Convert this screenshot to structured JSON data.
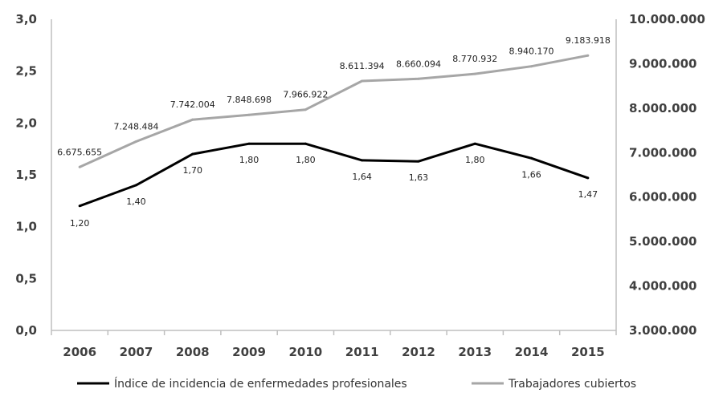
{
  "chart_data": {
    "type": "line",
    "categories": [
      "2006",
      "2007",
      "2008",
      "2009",
      "2010",
      "2011",
      "2012",
      "2013",
      "2014",
      "2015"
    ],
    "series": [
      {
        "name": "Índice de incidencia de enfermedades profesionales",
        "axis": "left",
        "color": "#000000",
        "values": [
          1.2,
          1.4,
          1.7,
          1.8,
          1.8,
          1.64,
          1.63,
          1.8,
          1.66,
          1.47
        ],
        "labels": [
          "1,20",
          "1,40",
          "1,70",
          "1,80",
          "1,80",
          "1,64",
          "1,63",
          "1,80",
          "1,66",
          "1,47"
        ]
      },
      {
        "name": "Trabajadores cubiertos",
        "axis": "right",
        "color": "#a6a6a6",
        "values": [
          6675655,
          7248484,
          7742004,
          7848698,
          7966922,
          8611394,
          8660094,
          8770932,
          8940170,
          9183918
        ],
        "labels": [
          "6.675.655",
          "7.248.484",
          "7.742.004",
          "7.848.698",
          "7.966.922",
          "8.611.394",
          "8.660.094",
          "8.770.932",
          "8.940.170",
          "9.183.918"
        ]
      }
    ],
    "ylim_left": [
      0,
      3
    ],
    "ylim_right": [
      3000000,
      10000000
    ],
    "yticks_left": [
      "0,0",
      "0,5",
      "1,0",
      "1,5",
      "2,0",
      "2,5",
      "3,0"
    ],
    "yticks_right": [
      "3.000.000",
      "4.000.000",
      "5.000.000",
      "6.000.000",
      "7.000.000",
      "8.000.000",
      "9.000.000",
      "10.000.000"
    ],
    "grid": false,
    "legend_position": "bottom"
  }
}
